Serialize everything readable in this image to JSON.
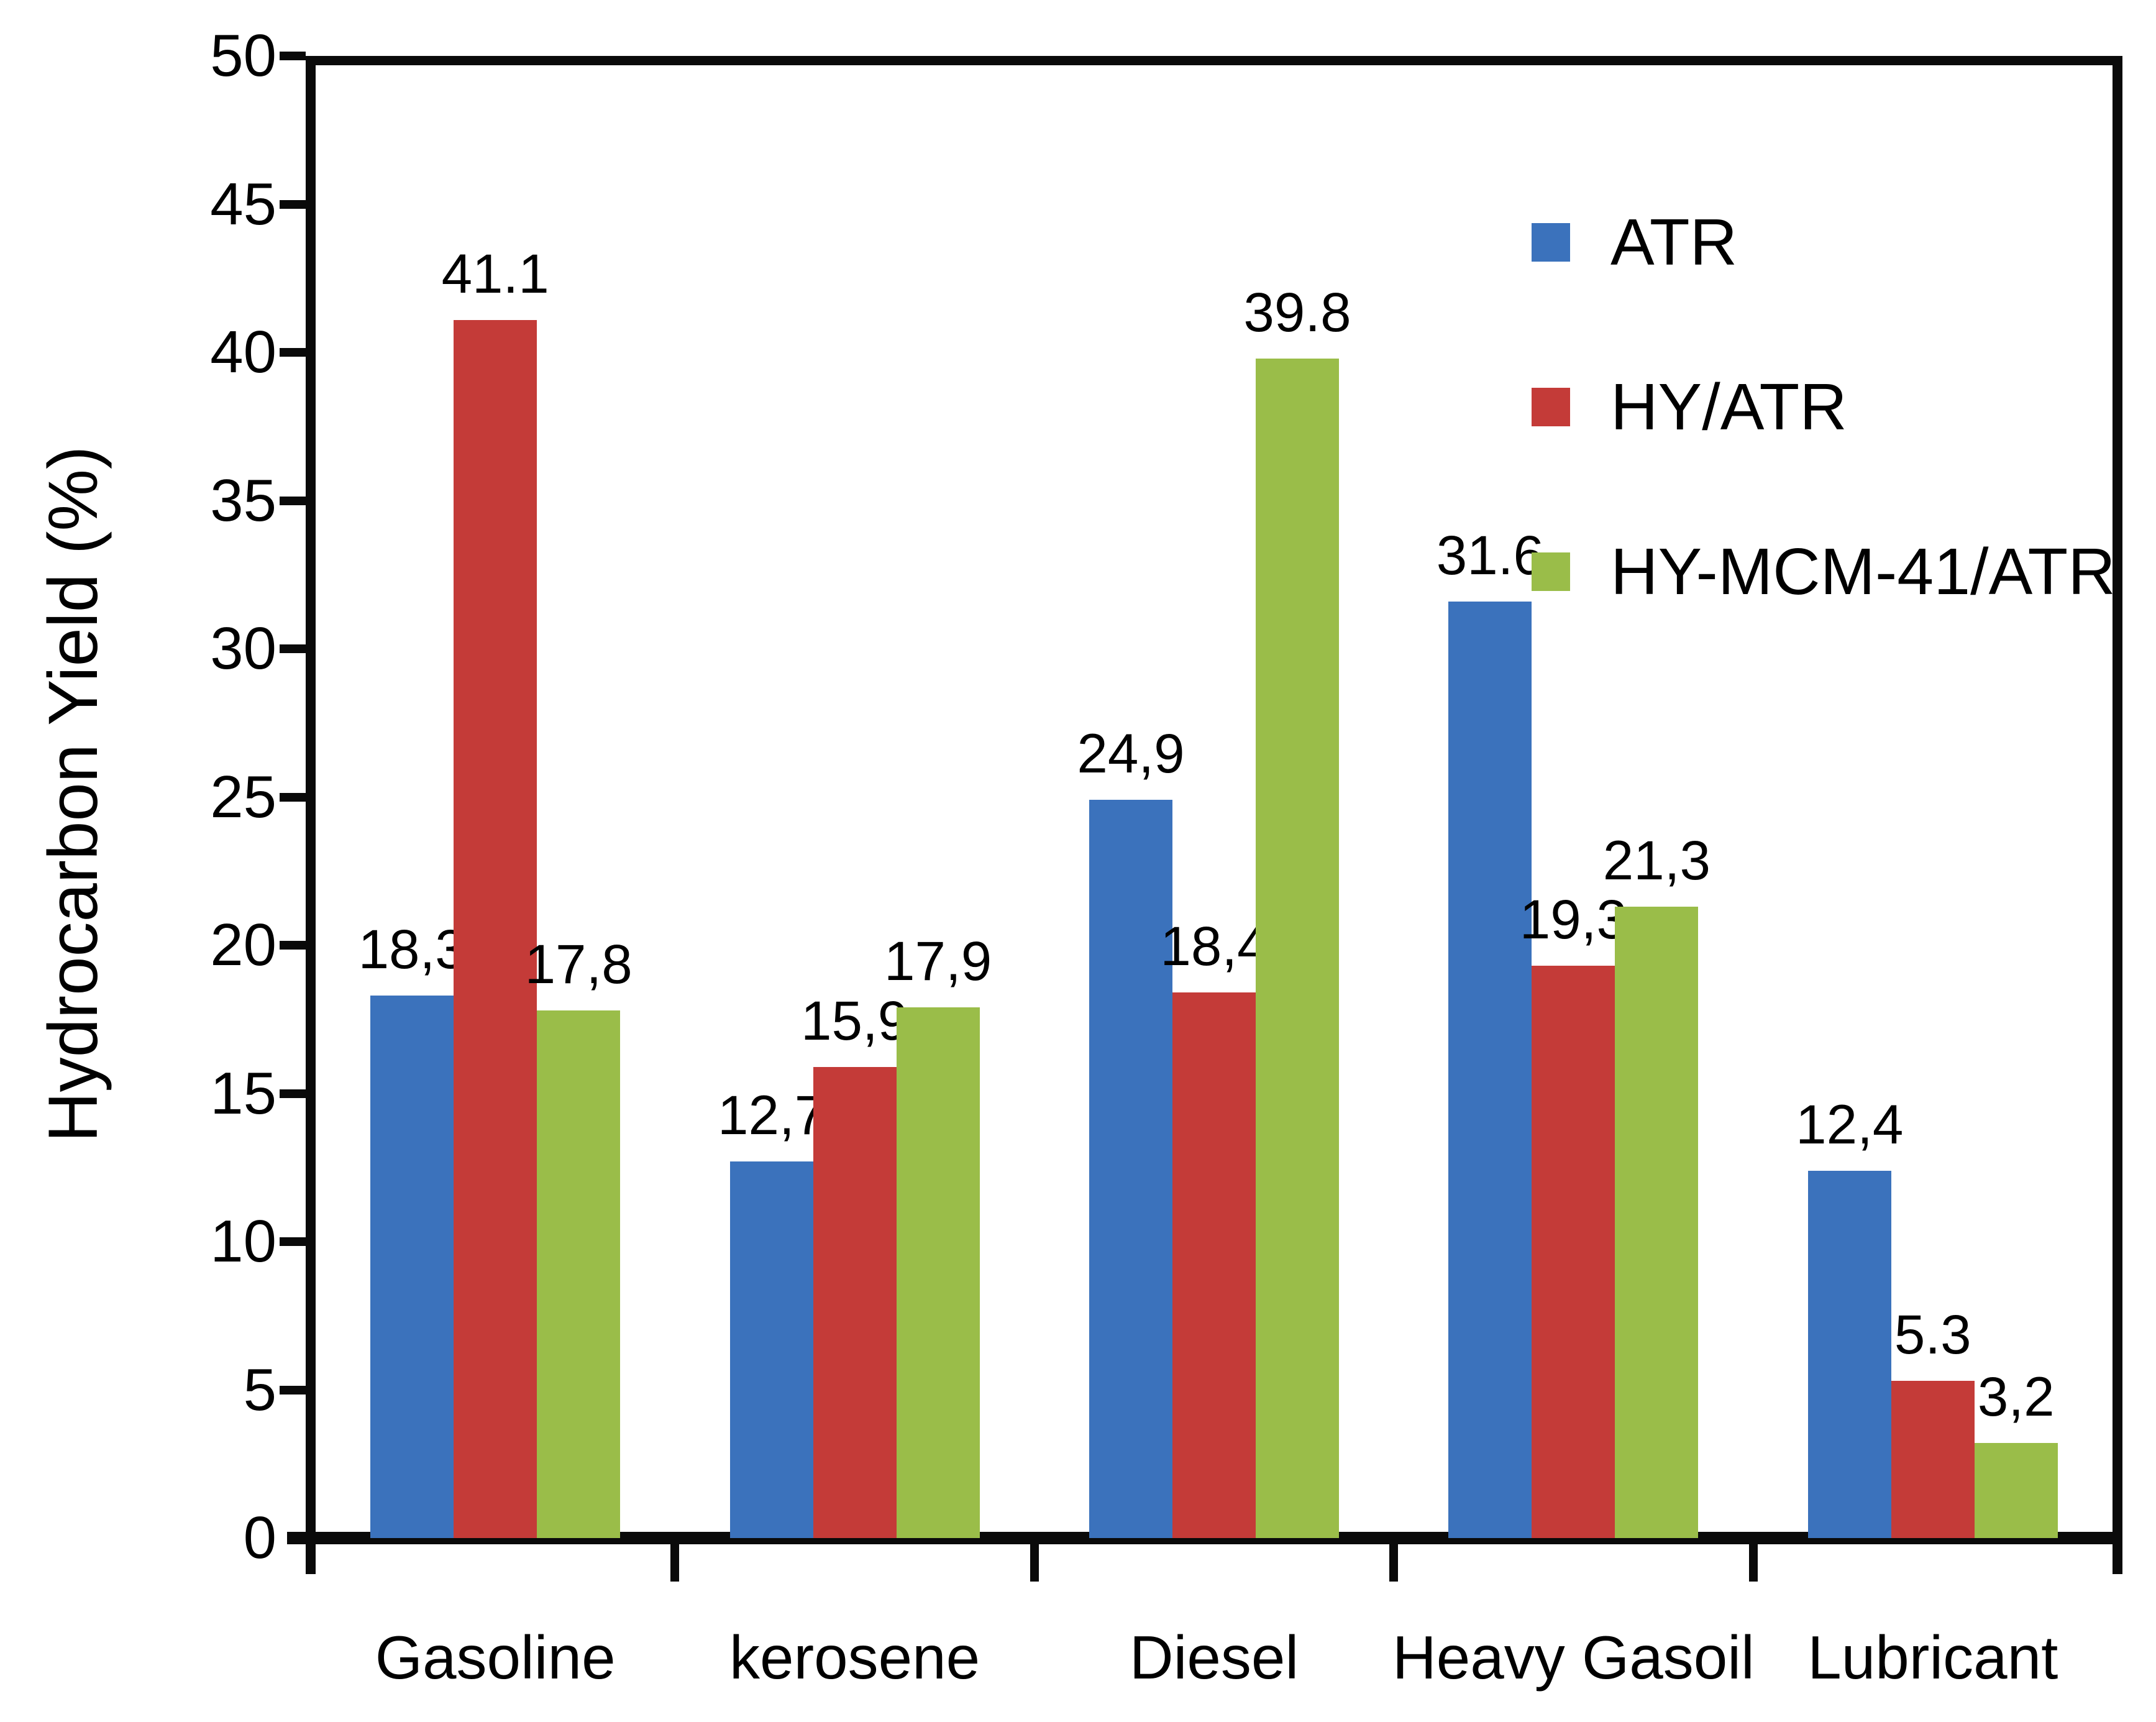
{
  "figure": {
    "background": "#ffffff",
    "frame_color": "#0a0a0a",
    "text_color": "#000000"
  },
  "y_axis": {
    "title": "Hydrocarbon Yield (%)",
    "tick_labels": [
      "50",
      "45",
      "40",
      "35",
      "30",
      "25",
      "20",
      "15",
      "10",
      "5",
      "0"
    ]
  },
  "legend": {
    "items": [
      {
        "label": "ATR",
        "color": "#3b72bc"
      },
      {
        "label": "HY/ATR",
        "color": "#c43b38"
      },
      {
        "label": "HY-MCM-41/ATR",
        "color": "#9abd49"
      }
    ]
  },
  "chart_data": {
    "type": "bar",
    "title": "",
    "xlabel": "",
    "ylabel": "Hydrocarbon Yield (%)",
    "ylim": [
      0,
      50
    ],
    "y_tick_step": 5,
    "grid": false,
    "legend_position": "upper-right-inside",
    "categories": [
      "Gasoline",
      "kerosene",
      "Diesel",
      "Heavy Gasoil",
      "Lubricant"
    ],
    "series": [
      {
        "name": "ATR",
        "color": "#3b72bc",
        "values": [
          18.3,
          12.7,
          24.9,
          31.6,
          12.4
        ],
        "labels": [
          "18,3",
          "12,7",
          "24,9",
          "31.6",
          "12,4"
        ]
      },
      {
        "name": "HY/ATR",
        "color": "#c43b38",
        "values": [
          41.1,
          15.9,
          18.4,
          19.3,
          5.3
        ],
        "labels": [
          "41.1",
          "15,9",
          "18,4",
          "19,3",
          "5.3"
        ]
      },
      {
        "name": "HY-MCM-41/ATR",
        "color": "#9abd49",
        "values": [
          17.8,
          17.9,
          39.8,
          21.3,
          3.2
        ],
        "labels": [
          "17,8",
          "17,9",
          "39.8",
          "21,3",
          "3,2"
        ]
      }
    ]
  }
}
